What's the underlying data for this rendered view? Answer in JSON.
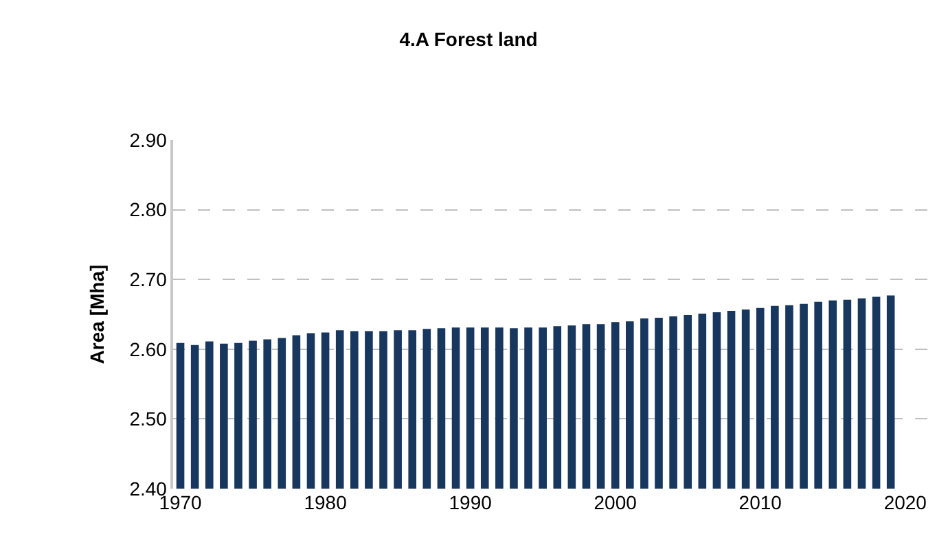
{
  "chart_data": {
    "type": "bar",
    "title": "4.A Forest land",
    "ylabel": "Area [Mha]",
    "x": [
      1970,
      1971,
      1972,
      1973,
      1974,
      1975,
      1976,
      1977,
      1978,
      1979,
      1980,
      1981,
      1982,
      1983,
      1984,
      1985,
      1986,
      1987,
      1988,
      1989,
      1990,
      1991,
      1992,
      1993,
      1994,
      1995,
      1996,
      1997,
      1998,
      1999,
      2000,
      2001,
      2002,
      2003,
      2004,
      2005,
      2006,
      2007,
      2008,
      2009,
      2010,
      2011,
      2012,
      2013,
      2014,
      2015,
      2016,
      2017,
      2018,
      2019
    ],
    "values": [
      2.609,
      2.606,
      2.611,
      2.608,
      2.609,
      2.612,
      2.614,
      2.616,
      2.62,
      2.623,
      2.624,
      2.627,
      2.626,
      2.626,
      2.626,
      2.627,
      2.627,
      2.629,
      2.63,
      2.631,
      2.631,
      2.631,
      2.631,
      2.63,
      2.631,
      2.631,
      2.633,
      2.634,
      2.636,
      2.636,
      2.639,
      2.64,
      2.644,
      2.645,
      2.647,
      2.649,
      2.651,
      2.653,
      2.655,
      2.657,
      2.659,
      2.662,
      2.663,
      2.665,
      2.668,
      2.67,
      2.671,
      2.673,
      2.675,
      2.677
    ],
    "color": "#17375e",
    "xlim": [
      1969.5,
      2022
    ],
    "xticks": [
      1970,
      1980,
      1990,
      2000,
      2010,
      2020
    ],
    "ylim": [
      2.4,
      2.9
    ],
    "yticks": [
      {
        "value": 2.4,
        "label": "2.40"
      },
      {
        "value": 2.5,
        "label": "2.50"
      },
      {
        "value": 2.6,
        "label": "2.60"
      },
      {
        "value": 2.7,
        "label": "2.70"
      },
      {
        "value": 2.8,
        "label": "2.80"
      },
      {
        "value": 2.9,
        "label": "2.90"
      }
    ],
    "grid": "y",
    "legend": false
  }
}
